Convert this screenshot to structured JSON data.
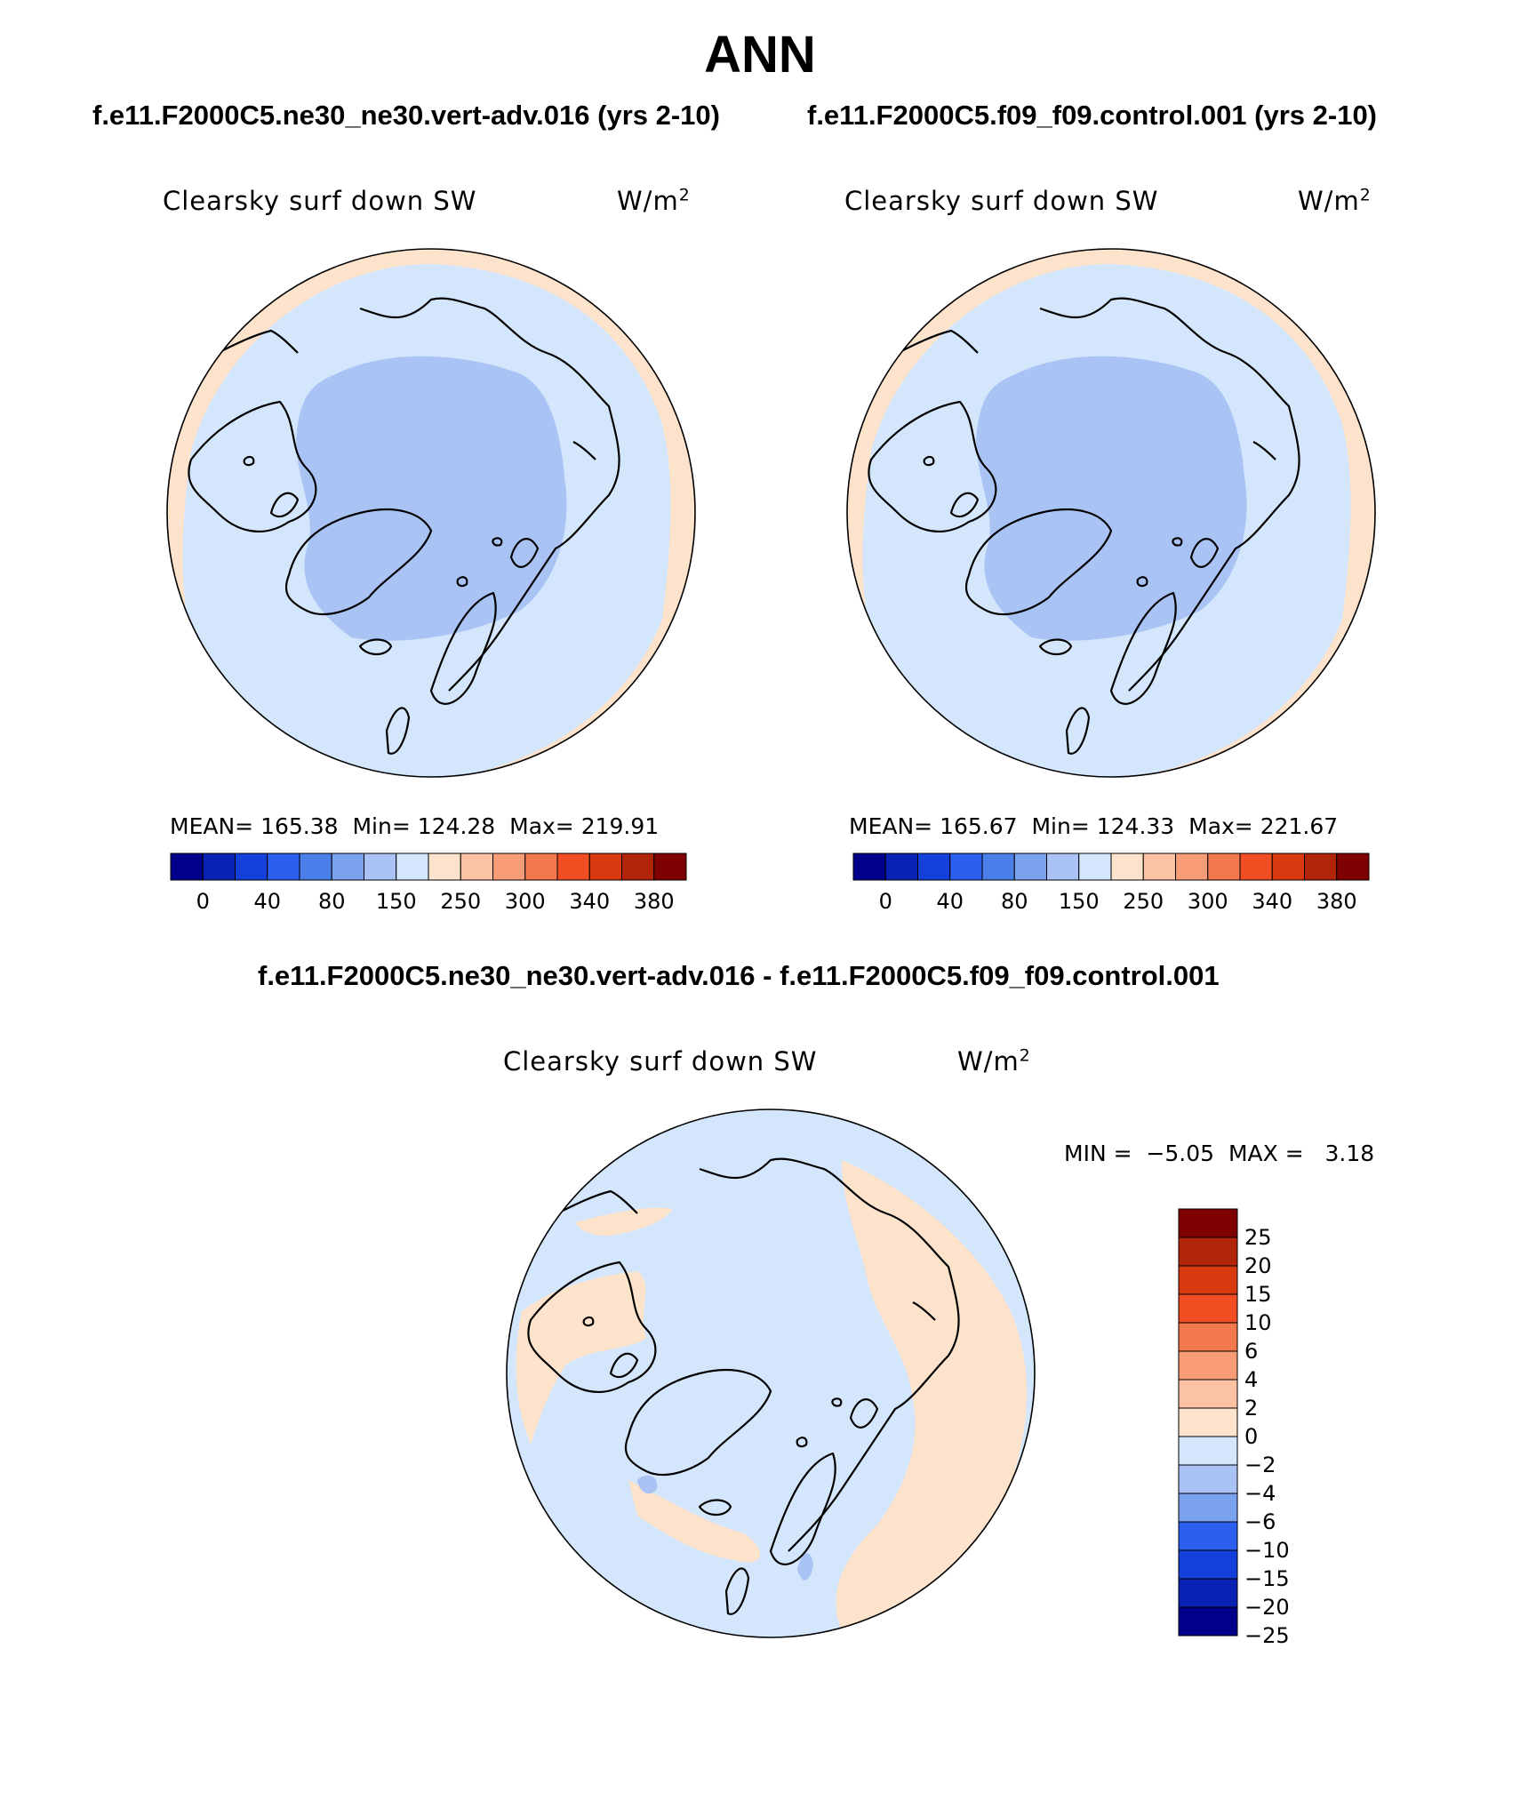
{
  "figure": {
    "title": "ANN",
    "panels": [
      {
        "case_title": "f.e11.F2000C5.ne30_ne30.vert-adv.016 (yrs 2-10)",
        "variable": "Clearsky surf down SW",
        "units": "W/m",
        "units_exp": "2",
        "stats": {
          "mean_label": "MEAN=",
          "mean": "165.38",
          "min_label": "Min=",
          "min": "124.28",
          "max_label": "Max=",
          "max": "219.91"
        }
      },
      {
        "case_title": "f.e11.F2000C5.f09_f09.control.001 (yrs 2-10)",
        "variable": "Clearsky surf down SW",
        "units": "W/m",
        "units_exp": "2",
        "stats": {
          "mean_label": "MEAN=",
          "mean": "165.67",
          "min_label": "Min=",
          "min": "124.33",
          "max_label": "Max=",
          "max": "221.67"
        }
      },
      {
        "case_title": "f.e11.F2000C5.ne30_ne30.vert-adv.016 - f.e11.F2000C5.f09_f09.control.001",
        "variable": "Clearsky surf down SW",
        "units": "W/m",
        "units_exp": "2",
        "stats": {
          "min_label": "MIN =",
          "min": "−5.05",
          "max_label": "MAX =",
          "max": "3.18"
        }
      }
    ],
    "abs_colorbar": {
      "colors": [
        "#00008b",
        "#0a22b4",
        "#1240d8",
        "#2a5ff0",
        "#4a7ee8",
        "#7ba2ef",
        "#aac3f5",
        "#d4e6fb",
        "#fde2cc",
        "#fbc3a3",
        "#f89c78",
        "#f3784e",
        "#f04d22",
        "#d9390f",
        "#b22408",
        "#7f0000"
      ],
      "labels": [
        "0",
        "40",
        "80",
        "150",
        "250",
        "300",
        "340",
        "380"
      ]
    },
    "diff_colorbar": {
      "colors": [
        "#00008b",
        "#0a22b4",
        "#1240d8",
        "#2a5ff0",
        "#7ba2ef",
        "#aac3f5",
        "#d4e6fb",
        "#fde2cc",
        "#fbc3a3",
        "#f89c78",
        "#f3784e",
        "#f04d22",
        "#d9390f",
        "#b22408",
        "#7f0000"
      ],
      "labels": [
        "25",
        "20",
        "15",
        "10",
        "6",
        "4",
        "2",
        "0",
        "−2",
        "−4",
        "−6",
        "−10",
        "−15",
        "−20",
        "−25"
      ]
    },
    "map_colors": {
      "ocean_outer": "#fde2cc",
      "mid": "#d4e6fb",
      "inner": "#aac3f5",
      "coast": "#000000"
    }
  }
}
